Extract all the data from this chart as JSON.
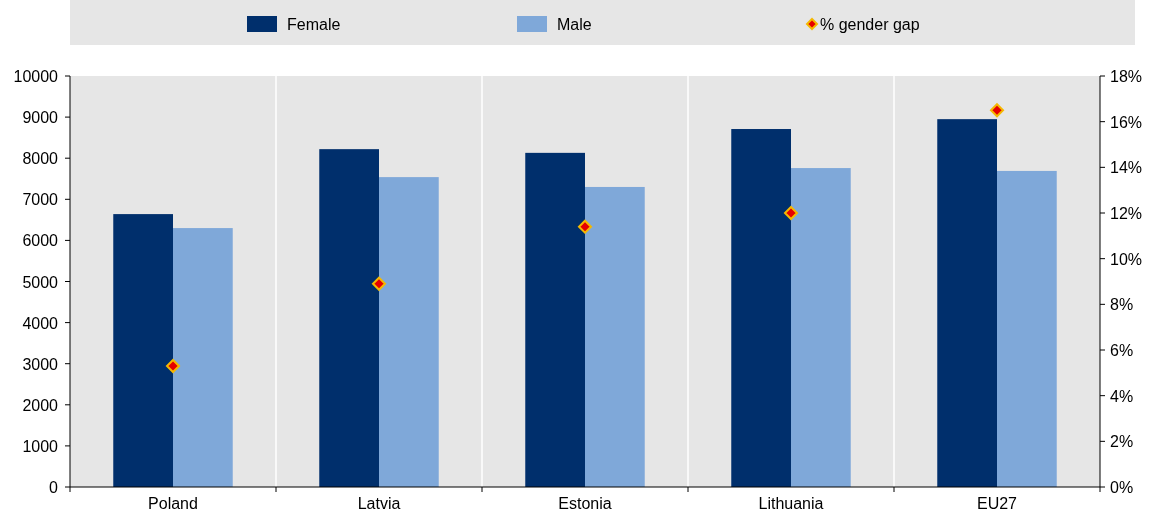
{
  "chart_data": {
    "type": "bar",
    "categories": [
      "Poland",
      "Latvia",
      "Estonia",
      "Lithuania",
      "EU27"
    ],
    "series": [
      {
        "name": "Female",
        "color": "#002f6c",
        "values": [
          6640,
          8220,
          8130,
          8710,
          8950
        ]
      },
      {
        "name": "Male",
        "color": "#7fa8d9",
        "values": [
          6300,
          7540,
          7300,
          7760,
          7690
        ]
      },
      {
        "name": "% gender gap",
        "type": "scatter",
        "axis": "y2",
        "color": "#e60000",
        "marker": "diamond",
        "values": [
          5.3,
          8.9,
          11.4,
          12.0,
          16.5
        ]
      }
    ],
    "ylim": [
      0,
      10000
    ],
    "yticks": [
      0,
      1000,
      2000,
      3000,
      4000,
      5000,
      6000,
      7000,
      8000,
      9000,
      10000
    ],
    "y2lim": [
      0,
      18
    ],
    "y2ticks": [
      {
        "value": 0,
        "label": "0%"
      },
      {
        "value": 2,
        "label": "2%"
      },
      {
        "value": 4,
        "label": "4%"
      },
      {
        "value": 6,
        "label": "6%"
      },
      {
        "value": 8,
        "label": "8%"
      },
      {
        "value": 10,
        "label": "10%"
      },
      {
        "value": 12,
        "label": "12%"
      },
      {
        "value": 14,
        "label": "14%"
      },
      {
        "value": 16,
        "label": "16%"
      },
      {
        "value": 18,
        "label": "18%"
      }
    ],
    "grid": "x",
    "legend": "top"
  }
}
